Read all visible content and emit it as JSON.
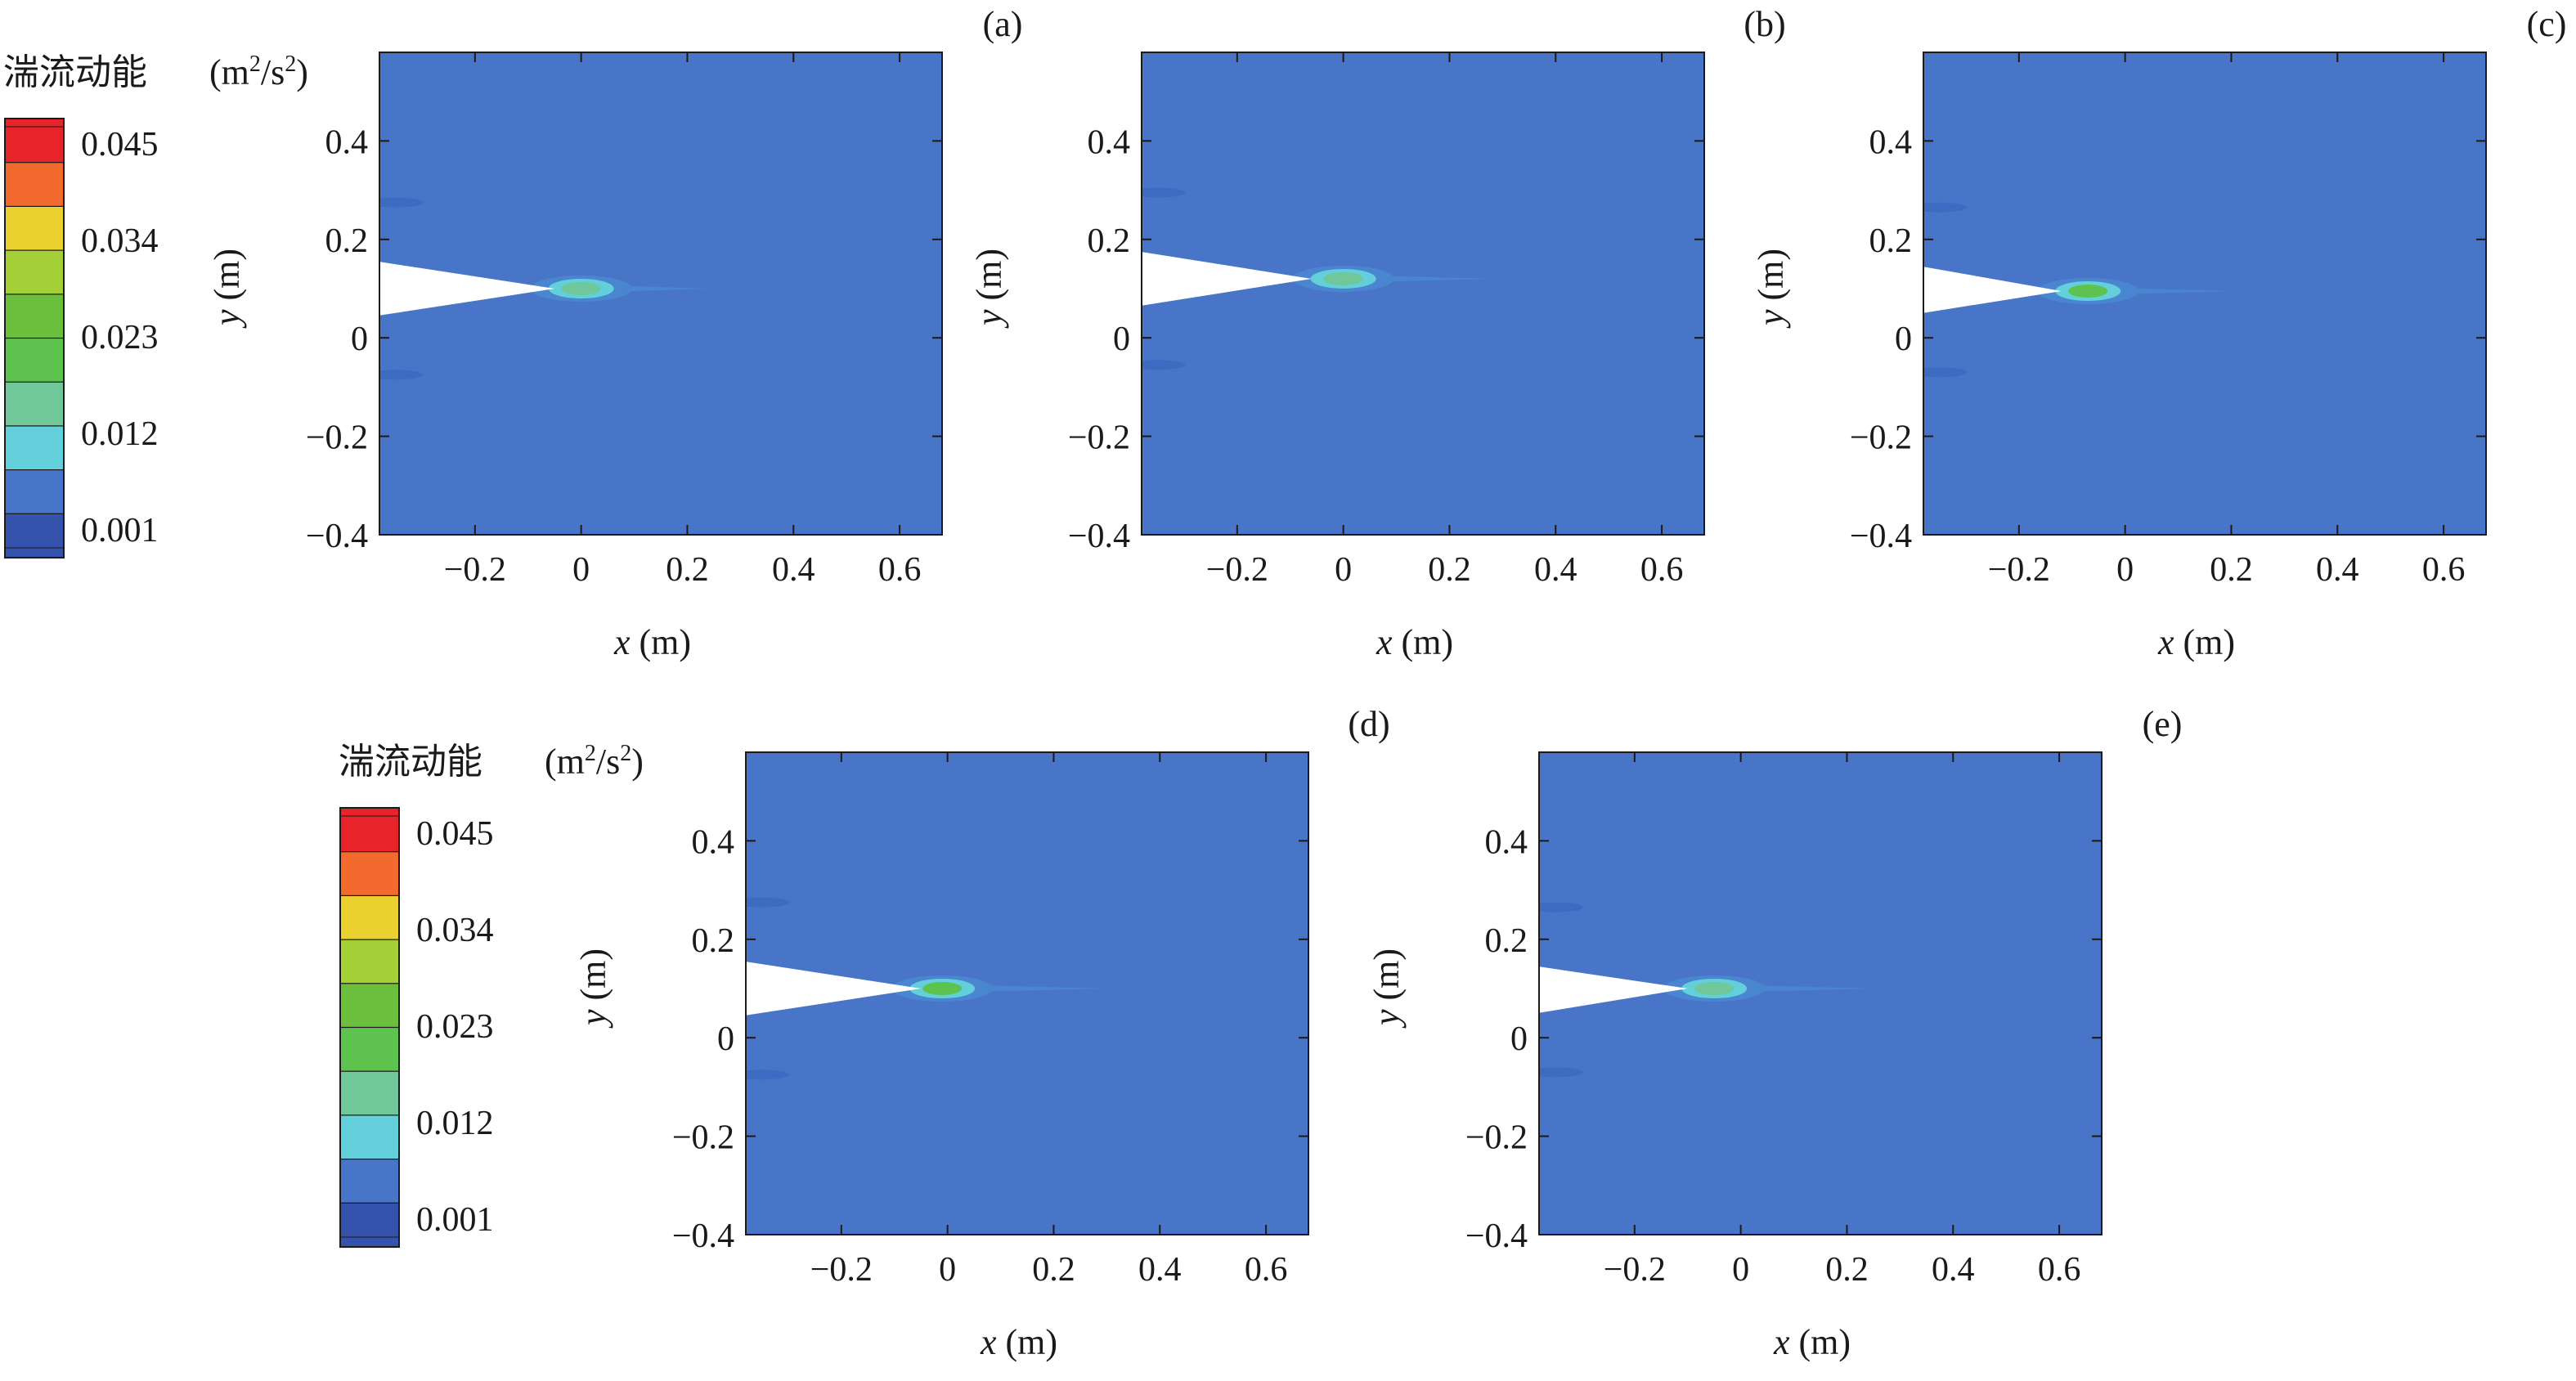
{
  "colorbar": {
    "title": "湍流动能",
    "unit_base": "(m",
    "unit_sup1": "2",
    "unit_mid": "/s",
    "unit_sup2": "2",
    "unit_close": ")",
    "tick_labels": [
      "0.045",
      "0.034",
      "0.023",
      "0.012",
      "0.001"
    ],
    "colors": [
      "#e8242b",
      "#f26a2e",
      "#ead12f",
      "#a5cf36",
      "#6cbf3c",
      "#5ec24e",
      "#6fc79a",
      "#62cfdb",
      "#4875c7",
      "#3553ad"
    ]
  },
  "chart_data": [
    {
      "type": "heatmap",
      "panel_label": "(a)",
      "xlabel_var": "x",
      "xlabel_unit": " (m)",
      "ylabel_var": "y",
      "ylabel_unit": " (m)",
      "xlim": [
        -0.38,
        0.68
      ],
      "ylim": [
        -0.4,
        0.58
      ],
      "xticks": [
        -0.2,
        0,
        0.2,
        0.4,
        0.6
      ],
      "xtick_labels": [
        "−0.2",
        "0",
        "0.2",
        "0.4",
        "0.6"
      ],
      "yticks": [
        0.4,
        0.2,
        0,
        -0.2,
        -0.4
      ],
      "ytick_labels": [
        "0.4",
        "0.2",
        "0",
        "−0.2",
        "−0.4"
      ],
      "background_tke": 0.001,
      "wedge": {
        "tip_x": -0.05,
        "tip_y": 0.1,
        "upper_y_at_left": 0.155,
        "lower_y_at_left": 0.045
      },
      "hotspot": {
        "x": 0.0,
        "y": 0.1,
        "peak_tke": 0.017
      },
      "wake_end_x": 0.24
    },
    {
      "type": "heatmap",
      "panel_label": "(b)",
      "xlabel_var": "x",
      "xlabel_unit": " (m)",
      "ylabel_var": "y",
      "ylabel_unit": " (m)",
      "xlim": [
        -0.38,
        0.68
      ],
      "ylim": [
        -0.4,
        0.58
      ],
      "xticks": [
        -0.2,
        0,
        0.2,
        0.4,
        0.6
      ],
      "xtick_labels": [
        "−0.2",
        "0",
        "0.2",
        "0.4",
        "0.6"
      ],
      "yticks": [
        0.4,
        0.2,
        0,
        -0.2,
        -0.4
      ],
      "ytick_labels": [
        "0.4",
        "0.2",
        "0",
        "−0.2",
        "−0.4"
      ],
      "background_tke": 0.001,
      "wedge": {
        "tip_x": -0.06,
        "tip_y": 0.12,
        "upper_y_at_left": 0.175,
        "lower_y_at_left": 0.065
      },
      "hotspot": {
        "x": 0.0,
        "y": 0.12,
        "peak_tke": 0.015
      },
      "wake_end_x": 0.28
    },
    {
      "type": "heatmap",
      "panel_label": "(c)",
      "xlabel_var": "x",
      "xlabel_unit": " (m)",
      "ylabel_var": "y",
      "ylabel_unit": " (m)",
      "xlim": [
        -0.38,
        0.68
      ],
      "ylim": [
        -0.4,
        0.58
      ],
      "xticks": [
        -0.2,
        0,
        0.2,
        0.4,
        0.6
      ],
      "xtick_labels": [
        "−0.2",
        "0",
        "0.2",
        "0.4",
        "0.6"
      ],
      "yticks": [
        0.4,
        0.2,
        0,
        -0.2,
        -0.4
      ],
      "ytick_labels": [
        "0.4",
        "0.2",
        "0",
        "−0.2",
        "−0.4"
      ],
      "background_tke": 0.001,
      "wedge": {
        "tip_x": -0.12,
        "tip_y": 0.095,
        "upper_y_at_left": 0.145,
        "lower_y_at_left": 0.05
      },
      "hotspot": {
        "x": -0.07,
        "y": 0.095,
        "peak_tke": 0.02
      },
      "wake_end_x": 0.2
    },
    {
      "type": "heatmap",
      "panel_label": "(d)",
      "xlabel_var": "x",
      "xlabel_unit": " (m)",
      "ylabel_var": "y",
      "ylabel_unit": " (m)",
      "xlim": [
        -0.38,
        0.68
      ],
      "ylim": [
        -0.4,
        0.58
      ],
      "xticks": [
        -0.2,
        0,
        0.2,
        0.4,
        0.6
      ],
      "xtick_labels": [
        "−0.2",
        "0",
        "0.2",
        "0.4",
        "0.6"
      ],
      "yticks": [
        0.4,
        0.2,
        0,
        -0.2,
        -0.4
      ],
      "ytick_labels": [
        "0.4",
        "0.2",
        "0",
        "−0.2",
        "−0.4"
      ],
      "background_tke": 0.001,
      "wedge": {
        "tip_x": -0.05,
        "tip_y": 0.1,
        "upper_y_at_left": 0.155,
        "lower_y_at_left": 0.045
      },
      "hotspot": {
        "x": -0.01,
        "y": 0.1,
        "peak_tke": 0.02
      },
      "wake_end_x": 0.3
    },
    {
      "type": "heatmap",
      "panel_label": "(e)",
      "xlabel_var": "x",
      "xlabel_unit": " (m)",
      "ylabel_var": "y",
      "ylabel_unit": " (m)",
      "xlim": [
        -0.38,
        0.68
      ],
      "ylim": [
        -0.4,
        0.58
      ],
      "xticks": [
        -0.2,
        0,
        0.2,
        0.4,
        0.6
      ],
      "xtick_labels": [
        "−0.2",
        "0",
        "0.2",
        "0.4",
        "0.6"
      ],
      "yticks": [
        0.4,
        0.2,
        0,
        -0.2,
        -0.4
      ],
      "ytick_labels": [
        "0.4",
        "0.2",
        "0",
        "−0.2",
        "−0.4"
      ],
      "background_tke": 0.001,
      "wedge": {
        "tip_x": -0.1,
        "tip_y": 0.1,
        "upper_y_at_left": 0.145,
        "lower_y_at_left": 0.05
      },
      "hotspot": {
        "x": -0.05,
        "y": 0.1,
        "peak_tke": 0.014
      },
      "wake_end_x": 0.25
    }
  ]
}
